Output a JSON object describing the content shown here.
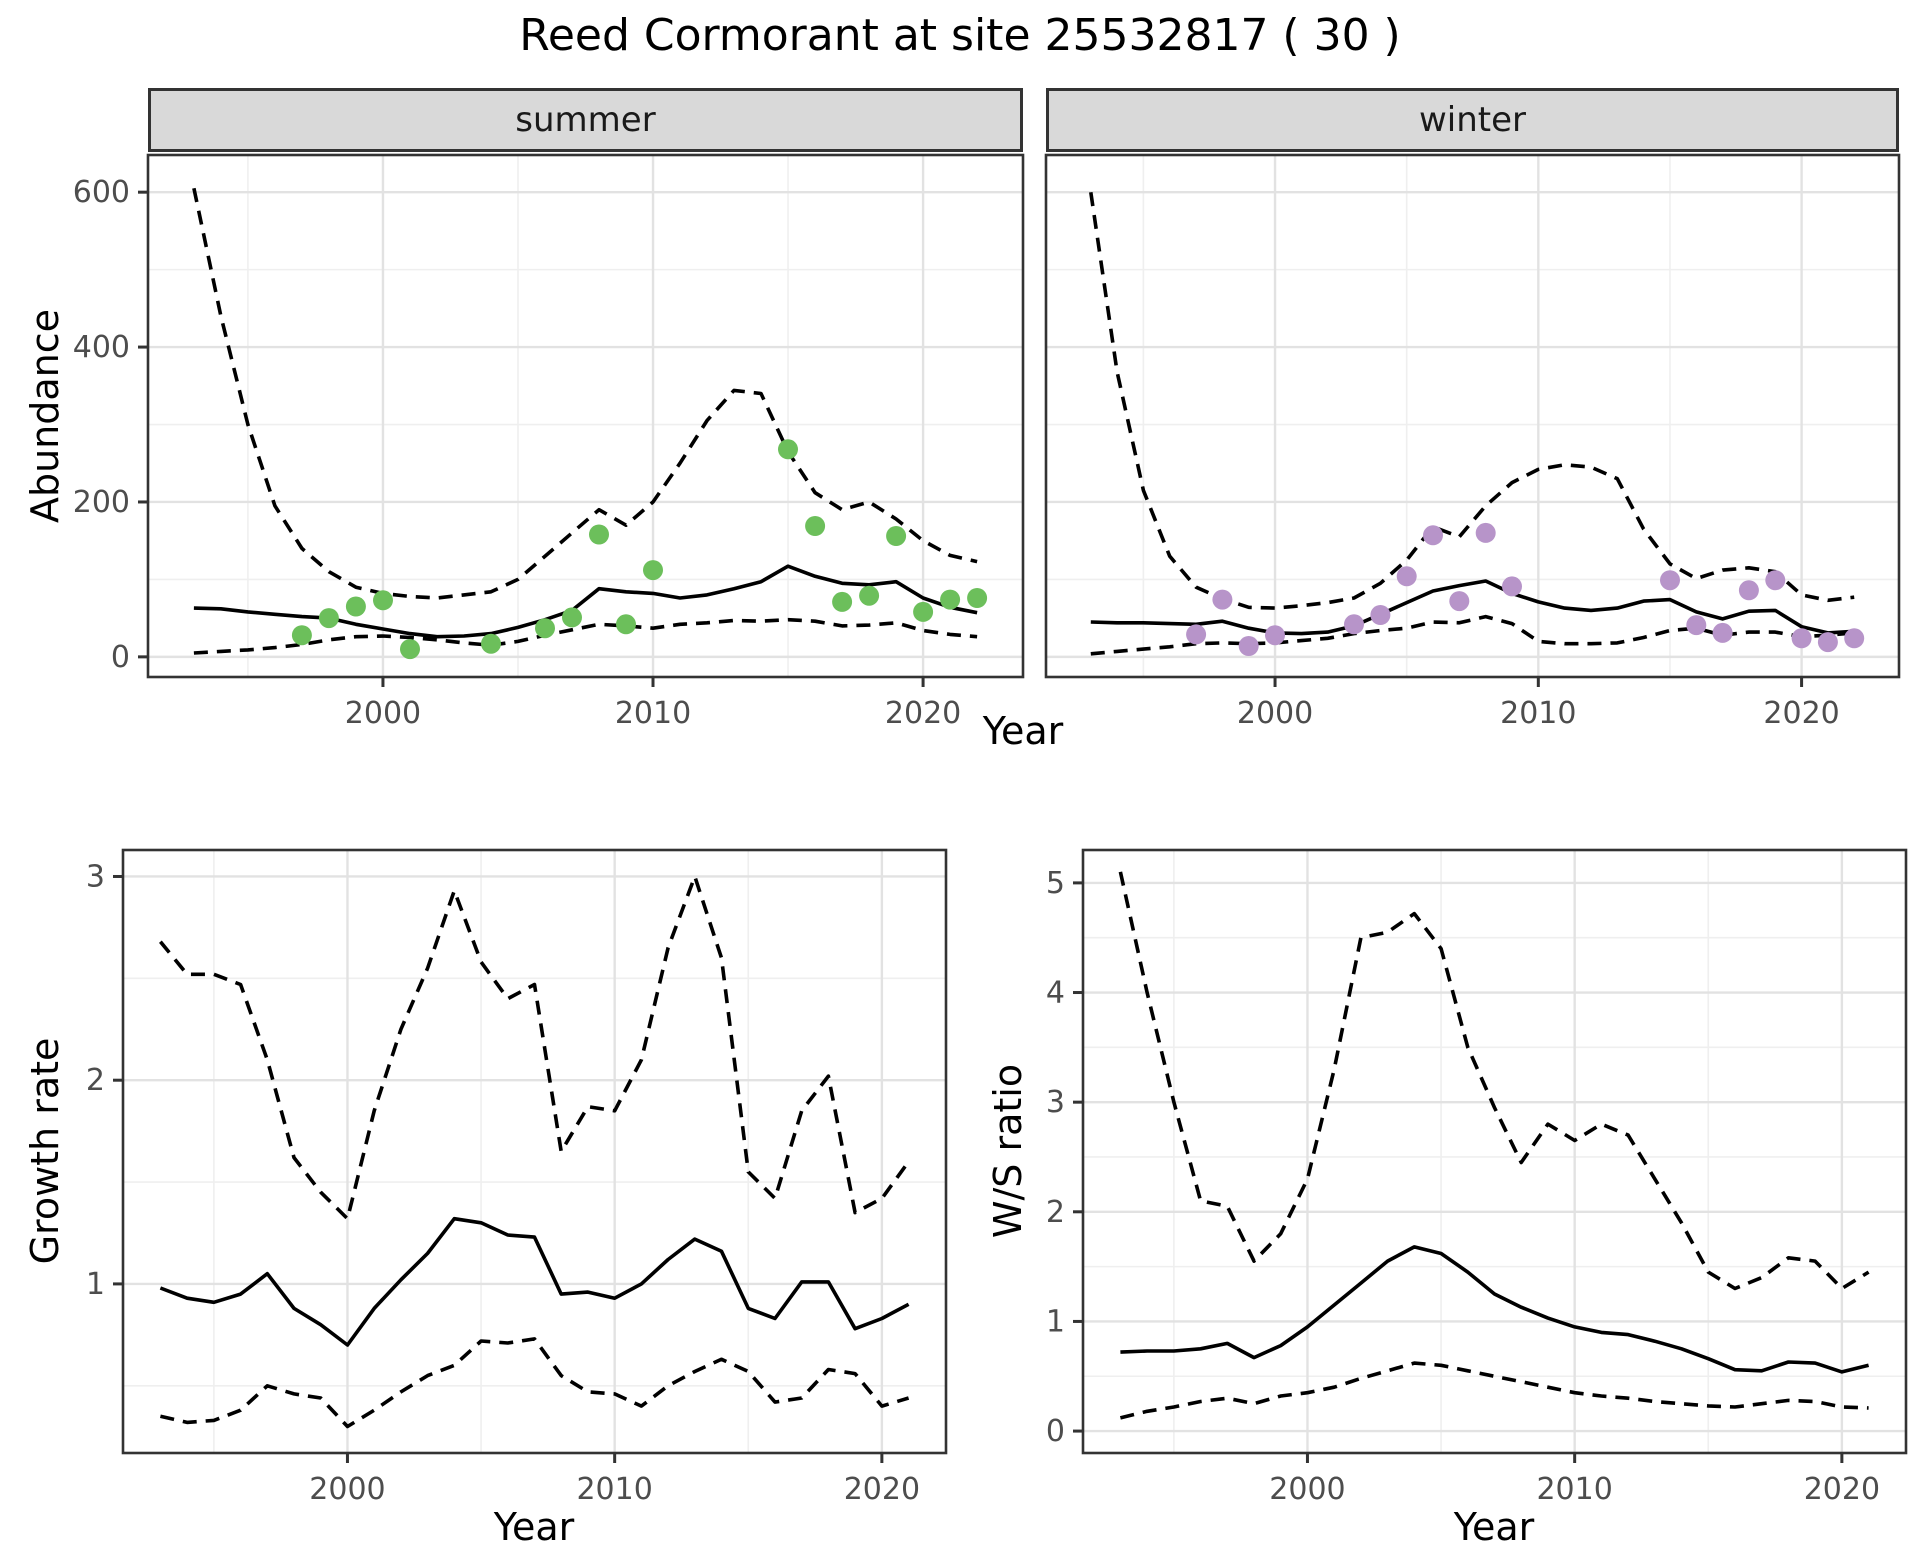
{
  "title": "Reed Cormorant at site 25532817 ( 30 )",
  "facets": {
    "summer": "summer",
    "winter": "winter"
  },
  "axis_titles": {
    "y_top": "Abundance",
    "x_top": "Year",
    "y_bottom_left": "Growth rate",
    "y_bottom_right": "W/S ratio",
    "x_bottom_left": "Year",
    "x_bottom_right": "Year"
  },
  "colors": {
    "summer_points": "#6cbf5b",
    "winter_points": "#b794c9",
    "line": "#000000",
    "strip_bg": "#d9d9d9",
    "grid_major": "#e2e2e2",
    "grid_minor": "#efefef",
    "tick_text": "#4d4d4d",
    "panel_border": "#333333"
  },
  "chart_data": [
    {
      "id": "summer",
      "type": "line",
      "facet_label": "summer",
      "ylabel": "Abundance",
      "xlabel": "Year",
      "x": [
        1993,
        1994,
        1995,
        1996,
        1997,
        1998,
        1999,
        2000,
        2001,
        2002,
        2003,
        2004,
        2005,
        2006,
        2007,
        2008,
        2009,
        2010,
        2011,
        2012,
        2013,
        2014,
        2015,
        2016,
        2017,
        2018,
        2019,
        2020,
        2021,
        2022
      ],
      "series": [
        {
          "name": "upper-ci",
          "style": "dashed",
          "values": [
            605,
            440,
            300,
            195,
            140,
            110,
            90,
            82,
            78,
            76,
            80,
            84,
            100,
            130,
            160,
            190,
            170,
            200,
            250,
            305,
            344,
            340,
            265,
            212,
            190,
            200,
            178,
            150,
            131,
            123
          ]
        },
        {
          "name": "fit",
          "style": "solid",
          "values": [
            63,
            62,
            58,
            55,
            52,
            50,
            42,
            36,
            30,
            26,
            27,
            30,
            38,
            48,
            60,
            88,
            84,
            82,
            76,
            80,
            88,
            97,
            117,
            104,
            95,
            93,
            97,
            76,
            64,
            57
          ]
        },
        {
          "name": "lower-ci",
          "style": "dashed",
          "values": [
            5,
            7,
            9,
            12,
            16,
            22,
            26,
            27,
            25,
            22,
            18,
            15,
            20,
            28,
            35,
            42,
            40,
            37,
            42,
            44,
            47,
            46,
            48,
            46,
            40,
            41,
            44,
            34,
            29,
            26
          ]
        }
      ],
      "points": {
        "x": [
          1997,
          1998,
          1999,
          2000,
          2001,
          2004,
          2006,
          2007,
          2008,
          2009,
          2010,
          2015,
          2016,
          2017,
          2018,
          2019,
          2020,
          2021,
          2022
        ],
        "y": [
          28,
          50,
          65,
          73,
          10,
          17,
          37,
          51,
          158,
          42,
          112,
          268,
          169,
          71,
          79,
          156,
          58,
          74,
          76
        ],
        "color_key": "summer_points"
      },
      "xlim": [
        1991.3,
        2023.7
      ],
      "ylim": [
        -26,
        648
      ],
      "xticks": [
        2000,
        2010,
        2020
      ],
      "x_minor": [
        1995,
        2005,
        2015
      ],
      "yticks": [
        0,
        200,
        400,
        600
      ],
      "y_minor": [
        100,
        300,
        500
      ],
      "show_y_labels": true
    },
    {
      "id": "winter",
      "type": "line",
      "facet_label": "winter",
      "ylabel": "Abundance",
      "xlabel": "Year",
      "x": [
        1993,
        1994,
        1995,
        1996,
        1997,
        1998,
        1999,
        2000,
        2001,
        2002,
        2003,
        2004,
        2005,
        2006,
        2007,
        2008,
        2009,
        2010,
        2011,
        2012,
        2013,
        2014,
        2015,
        2016,
        2017,
        2018,
        2019,
        2020,
        2021,
        2022
      ],
      "series": [
        {
          "name": "upper-ci",
          "style": "dashed",
          "values": [
            600,
            368,
            215,
            130,
            90,
            75,
            64,
            63,
            66,
            70,
            76,
            95,
            125,
            168,
            155,
            195,
            225,
            242,
            248,
            245,
            230,
            165,
            120,
            101,
            112,
            115,
            110,
            80,
            73,
            77
          ]
        },
        {
          "name": "fit",
          "style": "solid",
          "values": [
            45,
            44,
            44,
            43,
            42,
            46,
            37,
            31,
            30,
            32,
            40,
            55,
            70,
            85,
            92,
            98,
            82,
            71,
            63,
            60,
            63,
            72,
            74,
            58,
            49,
            59,
            60,
            39,
            31,
            33
          ]
        },
        {
          "name": "lower-ci",
          "style": "dashed",
          "values": [
            4,
            7,
            10,
            13,
            17,
            18,
            17,
            18,
            21,
            24,
            30,
            34,
            37,
            45,
            44,
            52,
            43,
            20,
            17,
            17,
            18,
            25,
            34,
            37,
            28,
            32,
            32,
            26,
            28,
            31
          ]
        }
      ],
      "points": {
        "x": [
          1997,
          1998,
          1999,
          2000,
          2003,
          2004,
          2005,
          2006,
          2007,
          2008,
          2009,
          2015,
          2016,
          2017,
          2018,
          2019,
          2020,
          2021,
          2022
        ],
        "y": [
          29,
          74,
          14,
          28,
          42,
          54,
          104,
          157,
          72,
          160,
          91,
          99,
          41,
          31,
          86,
          99,
          24,
          19,
          24
        ],
        "color_key": "winter_points"
      },
      "xlim": [
        1991.3,
        2023.7
      ],
      "ylim": [
        -26,
        648
      ],
      "xticks": [
        2000,
        2010,
        2020
      ],
      "x_minor": [
        1995,
        2005,
        2015
      ],
      "yticks": [
        0,
        200,
        400,
        600
      ],
      "y_minor": [
        100,
        300,
        500
      ],
      "show_y_labels": false
    },
    {
      "id": "growth",
      "type": "line",
      "ylabel": "Growth rate",
      "xlabel": "Year",
      "x": [
        1993,
        1994,
        1995,
        1996,
        1997,
        1998,
        1999,
        2000,
        2001,
        2002,
        2003,
        2004,
        2005,
        2006,
        2007,
        2008,
        2009,
        2010,
        2011,
        2012,
        2013,
        2014,
        2015,
        2016,
        2017,
        2018,
        2019,
        2020,
        2021
      ],
      "series": [
        {
          "name": "upper-ci",
          "style": "dashed",
          "values": [
            2.68,
            2.52,
            2.52,
            2.47,
            2.1,
            1.62,
            1.45,
            1.32,
            1.85,
            2.25,
            2.55,
            2.93,
            2.58,
            2.4,
            2.47,
            1.65,
            1.87,
            1.85,
            2.1,
            2.65,
            3.0,
            2.6,
            1.55,
            1.42,
            1.85,
            2.02,
            1.35,
            1.42,
            1.6
          ]
        },
        {
          "name": "fit",
          "style": "solid",
          "values": [
            0.98,
            0.93,
            0.91,
            0.95,
            1.05,
            0.88,
            0.8,
            0.7,
            0.88,
            1.02,
            1.15,
            1.32,
            1.3,
            1.24,
            1.23,
            0.95,
            0.96,
            0.93,
            1.0,
            1.12,
            1.22,
            1.16,
            0.88,
            0.83,
            1.01,
            1.01,
            0.78,
            0.83,
            0.9
          ]
        },
        {
          "name": "lower-ci",
          "style": "dashed",
          "values": [
            0.35,
            0.32,
            0.33,
            0.38,
            0.5,
            0.46,
            0.44,
            0.3,
            0.38,
            0.47,
            0.55,
            0.6,
            0.72,
            0.71,
            0.73,
            0.55,
            0.47,
            0.46,
            0.4,
            0.5,
            0.57,
            0.63,
            0.57,
            0.42,
            0.44,
            0.58,
            0.56,
            0.4,
            0.44
          ]
        }
      ],
      "xlim": [
        1991.6,
        2022.4
      ],
      "ylim": [
        0.17,
        3.13
      ],
      "xticks": [
        2000,
        2010,
        2020
      ],
      "x_minor": [
        1995,
        2005,
        2015
      ],
      "yticks": [
        1,
        2,
        3
      ],
      "y_minor": [
        0.5,
        1.5,
        2.5
      ],
      "show_y_labels": true
    },
    {
      "id": "ws",
      "type": "line",
      "ylabel": "W/S ratio",
      "xlabel": "Year",
      "x": [
        1993,
        1994,
        1995,
        1996,
        1997,
        1998,
        1999,
        2000,
        2001,
        2002,
        2003,
        2004,
        2005,
        2006,
        2007,
        2008,
        2009,
        2010,
        2011,
        2012,
        2013,
        2014,
        2015,
        2016,
        2017,
        2018,
        2019,
        2020,
        2021
      ],
      "series": [
        {
          "name": "upper-ci",
          "style": "dashed",
          "values": [
            5.1,
            4.0,
            3.0,
            2.1,
            2.05,
            1.55,
            1.8,
            2.3,
            3.3,
            4.5,
            4.55,
            4.72,
            4.4,
            3.5,
            2.95,
            2.45,
            2.8,
            2.65,
            2.8,
            2.7,
            2.3,
            1.9,
            1.45,
            1.3,
            1.4,
            1.58,
            1.55,
            1.3,
            1.45
          ]
        },
        {
          "name": "fit",
          "style": "solid",
          "values": [
            0.72,
            0.73,
            0.73,
            0.75,
            0.8,
            0.67,
            0.78,
            0.95,
            1.15,
            1.35,
            1.55,
            1.68,
            1.62,
            1.45,
            1.25,
            1.13,
            1.03,
            0.95,
            0.9,
            0.88,
            0.82,
            0.75,
            0.66,
            0.56,
            0.55,
            0.63,
            0.62,
            0.54,
            0.6
          ]
        },
        {
          "name": "lower-ci",
          "style": "dashed",
          "values": [
            0.12,
            0.18,
            0.22,
            0.27,
            0.3,
            0.25,
            0.32,
            0.35,
            0.4,
            0.48,
            0.55,
            0.62,
            0.6,
            0.55,
            0.5,
            0.45,
            0.4,
            0.35,
            0.32,
            0.3,
            0.27,
            0.25,
            0.23,
            0.22,
            0.25,
            0.28,
            0.27,
            0.22,
            0.21
          ]
        }
      ],
      "xlim": [
        1991.6,
        2022.4
      ],
      "ylim": [
        -0.2,
        5.3
      ],
      "xticks": [
        2000,
        2010,
        2020
      ],
      "x_minor": [
        1995,
        2005,
        2015
      ],
      "yticks": [
        0,
        1,
        2,
        3,
        4,
        5
      ],
      "y_minor": [
        0.5,
        1.5,
        2.5,
        3.5,
        4.5
      ],
      "show_y_labels": true
    }
  ]
}
